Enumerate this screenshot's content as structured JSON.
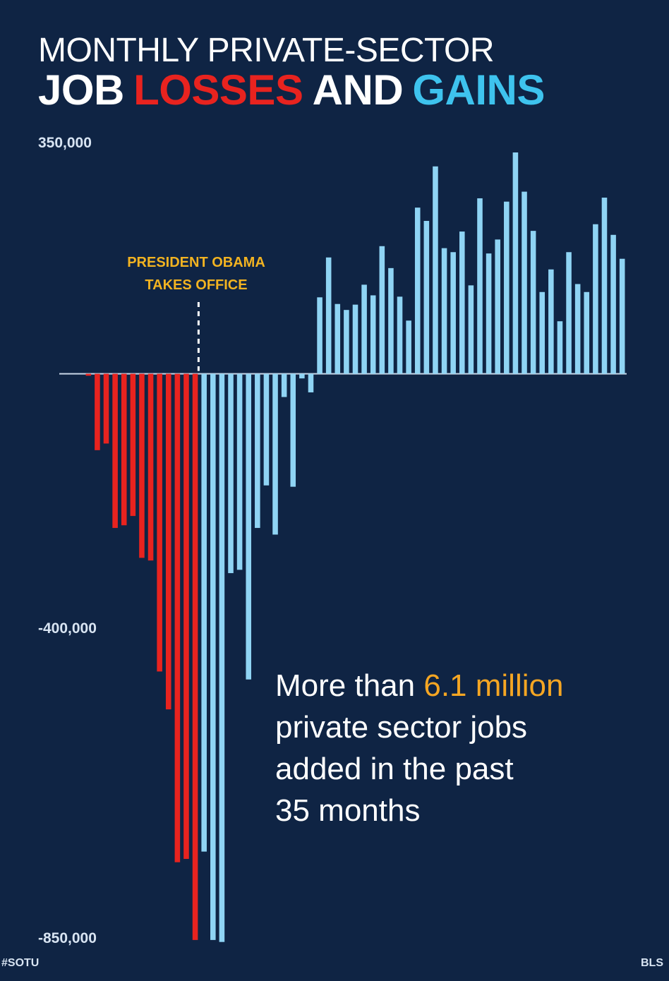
{
  "header": {
    "title_line1": "MONTHLY PRIVATE-SECTOR",
    "title_line2": [
      {
        "text": "JOB",
        "color": "#ffffff"
      },
      {
        "text": "LOSSES",
        "color": "#e8231f"
      },
      {
        "text": "AND",
        "color": "#ffffff"
      },
      {
        "text": "GAINS",
        "color": "#3ec3ee"
      }
    ]
  },
  "chart_data": {
    "type": "bar",
    "ylim": [
      -850000,
      350000
    ],
    "y_tick_labels": [
      "350,000",
      "-400,000",
      "-850,000"
    ],
    "grid": false,
    "annotation": {
      "lines": [
        "PRESIDENT OBAMA",
        "TAKES OFFICE"
      ],
      "at_bar_index": 13
    },
    "colors": {
      "losses": "#e8231f",
      "gains": "#8fd4f4"
    },
    "values": [
      -3000,
      -115000,
      -105000,
      -232000,
      -228000,
      -214000,
      -277000,
      -281000,
      -448000,
      -505000,
      -735000,
      -730000,
      -852000,
      -719000,
      -852000,
      -855000,
      -300000,
      -295000,
      -460000,
      -232000,
      -168000,
      -242000,
      -35000,
      -170000,
      -7000,
      -28000,
      115000,
      175000,
      105000,
      96000,
      104000,
      134000,
      118000,
      192000,
      159000,
      116000,
      80000,
      250000,
      230000,
      312000,
      189000,
      183000,
      214000,
      133000,
      264000,
      181000,
      202000,
      259000,
      333000,
      274000,
      215000,
      123000,
      157000,
      79000,
      183000,
      135000,
      123000,
      225000,
      265000,
      209000,
      173000
    ],
    "bar_colors": [
      "losses",
      "losses",
      "losses",
      "losses",
      "losses",
      "losses",
      "losses",
      "losses",
      "losses",
      "losses",
      "losses",
      "losses",
      "losses",
      "gains",
      "gains",
      "gains",
      "gains",
      "gains",
      "gains",
      "gains",
      "gains",
      "gains",
      "gains",
      "gains",
      "gains",
      "gains",
      "gains",
      "gains",
      "gains",
      "gains",
      "gains",
      "gains",
      "gains",
      "gains",
      "gains",
      "gains",
      "gains",
      "gains",
      "gains",
      "gains",
      "gains",
      "gains",
      "gains",
      "gains",
      "gains",
      "gains",
      "gains",
      "gains",
      "gains",
      "gains",
      "gains",
      "gains",
      "gains",
      "gains",
      "gains",
      "gains",
      "gains",
      "gains",
      "gains",
      "gains",
      "gains"
    ]
  },
  "callout": {
    "prefix": "More than ",
    "highlight": "6.1 million",
    "line2": "private sector jobs",
    "line3": "added in the past",
    "line4": "35 months"
  },
  "footer": {
    "hashtag": "#SOTU",
    "source": "BLS"
  }
}
